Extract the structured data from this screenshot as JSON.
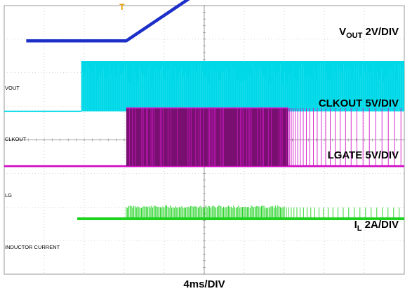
{
  "chart_data": {
    "type": "line",
    "instrument": "oscilloscope",
    "grid": true,
    "grid_divisions": {
      "horizontal": 10,
      "vertical": 8
    },
    "xlabel": "4ms/DIV",
    "x_units": "div",
    "xlim": [
      0,
      10
    ],
    "trigger_marker": {
      "label": "T",
      "x": 2.95,
      "color": "#e6a000"
    },
    "channels": [
      {
        "id": "vout",
        "name": "VOUT",
        "scale_main": "V",
        "scale_sub": "OUT",
        "scale_suffix": " 2V/DIV",
        "marker": "VOUT",
        "color": "#1c2fc8",
        "baseline_div": 6.95,
        "kind": "ramp",
        "points_div": [
          [
            1.1,
            6.95
          ],
          [
            6.1,
            6.95
          ],
          [
            10.1,
            8.55
          ],
          [
            13.8,
            9.55
          ],
          [
            20.0,
            9.55
          ]
        ],
        "notes": "output rises from 0 to final level over ~7.7 divisions"
      },
      {
        "id": "clkout",
        "name": "CLKOUT",
        "scale_main": "CLKOUT 5V/DIV",
        "scale_sub": "",
        "scale_suffix": "",
        "marker": "CLKOUT",
        "color": "#00d8e8",
        "baseline_div": 4.85,
        "high_div": 6.35,
        "kind": "clock",
        "start_div": 3.85,
        "end_div": 20.0
      },
      {
        "id": "lgate",
        "name": "LGATE",
        "scale_main": "LGATE 5V/DIV",
        "scale_sub": "",
        "scale_suffix": "",
        "marker": "LG",
        "color": "#d21ac8",
        "dense_color": "#7a0f72",
        "baseline_div": 3.22,
        "high_div": 4.95,
        "kind": "switching",
        "start_div": 6.1,
        "dense_end_div": 14.2,
        "sparse_end_div": 20.0
      },
      {
        "id": "il",
        "name": "IL",
        "scale_main": "I",
        "scale_sub": "L",
        "scale_suffix": " 2A/DIV",
        "marker": "INDUCTOR CURRENT",
        "color": "#1ed21e",
        "baseline_div": 1.65,
        "high_div": 2.05,
        "kind": "current",
        "start_div": 3.65,
        "step_div": 6.1,
        "ripple_end_div": 14.0
      }
    ]
  }
}
